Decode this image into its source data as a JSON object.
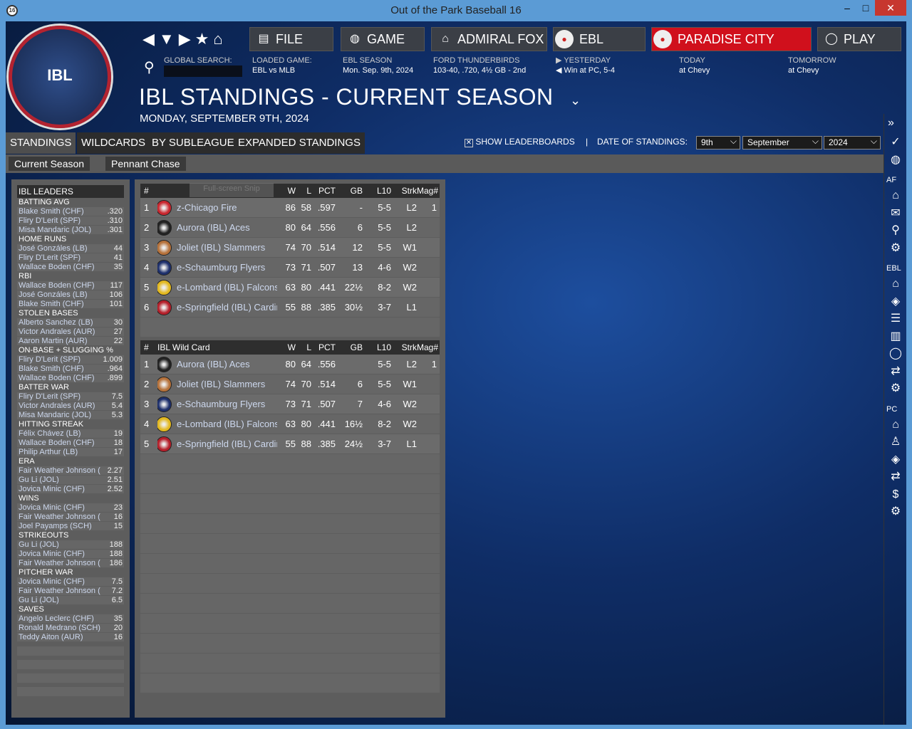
{
  "window": {
    "title": "Out of the Park Baseball 16",
    "app_icon": "16",
    "minimize": "–",
    "maximize": "□",
    "close": "✕"
  },
  "logo": {
    "text": "IBL",
    "subtext": "ILLINOIS BASEBALL LEAGUE"
  },
  "nav": {
    "back": "◀",
    "down": "▼",
    "forward": "▶",
    "star": "★",
    "home": "⌂",
    "buttons": [
      {
        "label": "FILE",
        "icon": "file-icon"
      },
      {
        "label": "GAME",
        "icon": "globe-icon"
      },
      {
        "label": "ADMIRAL FOX",
        "icon": "home-icon"
      },
      {
        "label": "EBL",
        "icon": "team-logo-icon"
      },
      {
        "label": "PARADISE CITY",
        "icon": "team-logo-icon"
      },
      {
        "label": "PLAY",
        "icon": "baseball-icon"
      }
    ]
  },
  "info": {
    "search_label": "GLOBAL SEARCH:",
    "search_value": "",
    "loaded_label": "LOADED GAME:",
    "loaded_value": "EBL vs MLB",
    "season_label": "EBL SEASON",
    "season_value": "Mon. Sep. 9th, 2024",
    "team_label": "FORD THUNDERBIRDS",
    "team_value": "103-40, .720, 4½ GB - 2nd",
    "yesterday_label": "YESTERDAY",
    "yesterday_value": "Win at PC, 5-4",
    "today_label": "TODAY",
    "today_value": "at Chevy",
    "tomorrow_label": "TOMORROW",
    "tomorrow_value": "at Chevy"
  },
  "page": {
    "title": "IBL STANDINGS - CURRENT SEASON",
    "date": "MONDAY, SEPTEMBER 9TH, 2024"
  },
  "tabs": [
    "STANDINGS",
    "WILDCARDS",
    "BY SUBLEAGUE",
    "EXPANDED STANDINGS"
  ],
  "subtabs": [
    "Current Season",
    "Pennant Chase"
  ],
  "controls": {
    "show_leaderboards": "SHOW LEADERBOARDS",
    "show_leaderboards_checked": true,
    "separator": "|",
    "date_label": "DATE OF STANDINGS:",
    "day": "9th",
    "month": "September",
    "year": "2024"
  },
  "leaders": {
    "title": "IBL LEADERS",
    "categories": [
      {
        "name": "BATTING AVG",
        "rows": [
          [
            "Blake Smith (CHF)",
            ".320"
          ],
          [
            "Fliry D'Lerit (SPF)",
            ".310"
          ],
          [
            "Misa Mandaric (JOL)",
            ".301"
          ]
        ]
      },
      {
        "name": "HOME RUNS",
        "rows": [
          [
            "José Gonzáles (LB)",
            "44"
          ],
          [
            "Fliry D'Lerit (SPF)",
            "41"
          ],
          [
            "Wallace Boden (CHF)",
            "35"
          ]
        ]
      },
      {
        "name": "RBI",
        "rows": [
          [
            "Wallace Boden (CHF)",
            "117"
          ],
          [
            "José Gonzáles (LB)",
            "106"
          ],
          [
            "Blake Smith (CHF)",
            "101"
          ]
        ]
      },
      {
        "name": "STOLEN BASES",
        "rows": [
          [
            "Alberto Sanchez (LB)",
            "30"
          ],
          [
            "Victor Andrales (AUR)",
            "27"
          ],
          [
            "Aaron Martin (AUR)",
            "22"
          ]
        ]
      },
      {
        "name": "ON-BASE + SLUGGING %",
        "rows": [
          [
            "Fliry D'Lerit (SPF)",
            "1.009"
          ],
          [
            "Blake Smith (CHF)",
            ".964"
          ],
          [
            "Wallace Boden (CHF)",
            ".899"
          ]
        ]
      },
      {
        "name": "BATTER WAR",
        "rows": [
          [
            "Fliry D'Lerit (SPF)",
            "7.5"
          ],
          [
            "Victor Andrales (AUR)",
            "5.4"
          ],
          [
            "Misa Mandaric (JOL)",
            "5.3"
          ]
        ]
      },
      {
        "name": "HITTING STREAK",
        "rows": [
          [
            "Félix Chávez (LB)",
            "19"
          ],
          [
            "Wallace Boden (CHF)",
            "18"
          ],
          [
            "Philip Arthur (LB)",
            "17"
          ]
        ]
      },
      {
        "name": "ERA",
        "rows": [
          [
            "Fair Weather Johnson (",
            "2.27"
          ],
          [
            "Gu Li (JOL)",
            "2.51"
          ],
          [
            "Jovica Minic (CHF)",
            "2.52"
          ]
        ]
      },
      {
        "name": "WINS",
        "rows": [
          [
            "Jovica Minic (CHF)",
            "23"
          ],
          [
            "Fair Weather Johnson (",
            "16"
          ],
          [
            "Joel Payamps (SCH)",
            "15"
          ]
        ]
      },
      {
        "name": "STRIKEOUTS",
        "rows": [
          [
            "Gu Li (JOL)",
            "188"
          ],
          [
            "Jovica Minic (CHF)",
            "188"
          ],
          [
            "Fair Weather Johnson (",
            "186"
          ]
        ]
      },
      {
        "name": "PITCHER WAR",
        "rows": [
          [
            "Jovica Minic (CHF)",
            "7.5"
          ],
          [
            "Fair Weather Johnson (",
            "7.2"
          ],
          [
            "Gu Li (JOL)",
            "6.5"
          ]
        ]
      },
      {
        "name": "SAVES",
        "rows": [
          [
            "Angelo Leclerc (CHF)",
            "35"
          ],
          [
            "Ronald Medrano (SCH)",
            "20"
          ],
          [
            "Teddy Aiton (AUR)",
            "16"
          ]
        ]
      }
    ]
  },
  "standings": {
    "overlay_text": "Full-screen Snip",
    "columns": [
      "#",
      "",
      "W",
      "L",
      "PCT",
      "GB",
      "L10",
      "Strk",
      "Mag#"
    ],
    "rows": [
      [
        "1",
        "z-Chicago Fire",
        "86",
        "58",
        ".597",
        "-",
        "5-5",
        "L2",
        "1"
      ],
      [
        "2",
        "Aurora (IBL) Aces",
        "80",
        "64",
        ".556",
        "6",
        "5-5",
        "L2",
        ""
      ],
      [
        "3",
        "Joliet (IBL) Slammers",
        "74",
        "70",
        ".514",
        "12",
        "5-5",
        "W1",
        ""
      ],
      [
        "4",
        "e-Schaumburg Flyers",
        "73",
        "71",
        ".507",
        "13",
        "4-6",
        "W2",
        ""
      ],
      [
        "5",
        "e-Lombard (IBL) Falcons",
        "63",
        "80",
        ".441",
        "22½",
        "8-2",
        "W2",
        ""
      ],
      [
        "6",
        "e-Springfield (IBL) Cardinals",
        "55",
        "88",
        ".385",
        "30½",
        "3-7",
        "L1",
        ""
      ]
    ],
    "logo_colors": [
      "#c8262e",
      "#222222",
      "#b5713a",
      "#1d2f6b",
      "#e2b81f",
      "#b41f2a"
    ]
  },
  "wildcard": {
    "columns": [
      "#",
      "IBL  Wild Card",
      "W",
      "L",
      "PCT",
      "GB",
      "L10",
      "Strk",
      "Mag#"
    ],
    "rows": [
      [
        "1",
        "Aurora (IBL) Aces",
        "80",
        "64",
        ".556",
        "",
        "5-5",
        "L2",
        "1"
      ],
      [
        "2",
        "Joliet (IBL) Slammers",
        "74",
        "70",
        ".514",
        "6",
        "5-5",
        "W1",
        ""
      ],
      [
        "3",
        "e-Schaumburg Flyers",
        "73",
        "71",
        ".507",
        "7",
        "4-6",
        "W2",
        ""
      ],
      [
        "4",
        "e-Lombard (IBL) Falcons",
        "63",
        "80",
        ".441",
        "16½",
        "8-2",
        "W2",
        ""
      ],
      [
        "5",
        "e-Springfield (IBL) Cardinals",
        "55",
        "88",
        ".385",
        "24½",
        "3-7",
        "L1",
        ""
      ]
    ],
    "logo_colors": [
      "#222222",
      "#b5713a",
      "#1d2f6b",
      "#e2b81f",
      "#b41f2a"
    ]
  },
  "sidebar": {
    "expand": "»",
    "groups": [
      {
        "label": "",
        "icons": [
          "check-icon",
          "globe-icon"
        ]
      },
      {
        "label": "AF",
        "icons": [
          "home-icon",
          "mail-icon",
          "search-icon",
          "gear-icon"
        ]
      },
      {
        "label": "EBL",
        "icons": [
          "home-icon",
          "diamond-icon",
          "list-icon",
          "bar-chart-icon",
          "baseball-icon",
          "transfer-icon",
          "gear-icon"
        ]
      },
      {
        "label": "PC",
        "icons": [
          "home-icon",
          "coach-icon",
          "diamond-icon",
          "transfer-icon",
          "dollar-icon",
          "gear-icon"
        ]
      }
    ]
  }
}
